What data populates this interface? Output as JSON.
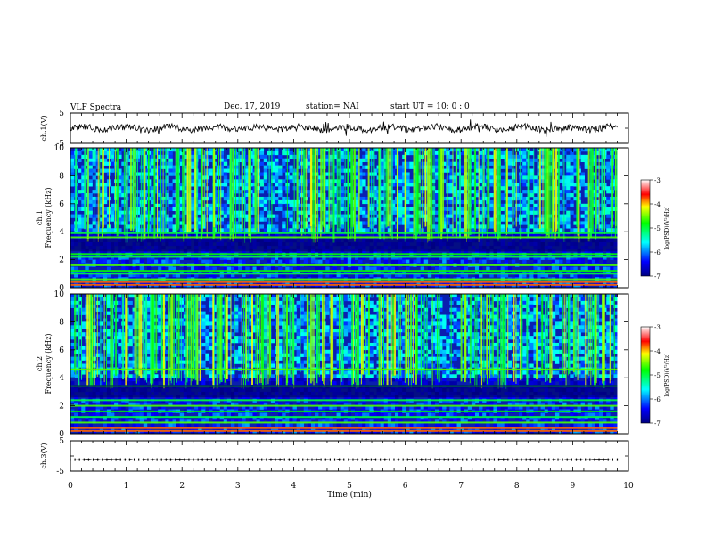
{
  "header": {
    "title": "VLF Spectra",
    "date": "Dec. 17, 2019",
    "station": "station= NAI",
    "start_ut": "start  UT =   10: 0  : 0"
  },
  "chart_data": [
    {
      "type": "line",
      "name": "ch1-waveform",
      "ylabel": "ch.1(V)",
      "ylim": [
        -5,
        5
      ],
      "yticks": [
        "5",
        "-5"
      ],
      "xlim": [
        0,
        10
      ],
      "note_level": 0
    },
    {
      "type": "heatmap",
      "name": "ch1-spectrogram",
      "ylabel": "ch.1\nFrequency (kHz)",
      "ylabel_lines": [
        "ch.1",
        "Frequency (kHz)"
      ],
      "ylim": [
        0,
        10
      ],
      "yticks": [
        "0",
        "2",
        "4",
        "6",
        "8",
        "10"
      ],
      "xlim": [
        0,
        10
      ],
      "data_end_min": 9.8,
      "colorbar": {
        "label": "log(PSD)(V²/Hz)",
        "range": [
          -7,
          -3
        ],
        "ticks": [
          "-3",
          "-4",
          "-5",
          "-6",
          "-7"
        ]
      },
      "persistent_lines_khz": [
        0.2,
        0.4,
        0.6,
        1.0,
        1.2,
        1.6,
        2.2,
        2.4,
        3.6,
        3.9
      ]
    },
    {
      "type": "heatmap",
      "name": "ch2-spectrogram",
      "ylabel": "ch.2\nFrequency (kHz)",
      "ylabel_lines": [
        "ch.2",
        "Frequency (kHz)"
      ],
      "ylim": [
        0,
        10
      ],
      "yticks": [
        "0",
        "2",
        "4",
        "6",
        "8",
        "10"
      ],
      "xlim": [
        0,
        10
      ],
      "data_end_min": 9.8,
      "colorbar": {
        "label": "log(PSD)(V²/Hz)",
        "range": [
          -7,
          -3
        ],
        "ticks": [
          "-3",
          "-4",
          "-5",
          "-6",
          "-7"
        ]
      },
      "persistent_lines_khz": [
        0.2,
        0.4,
        0.8,
        1.2,
        1.6,
        2.0,
        2.4,
        3.4,
        4.6
      ]
    },
    {
      "type": "line",
      "name": "ch3-waveform",
      "ylabel": "ch.3(V)",
      "ylim": [
        -5,
        5
      ],
      "yticks": [
        "5",
        "-5"
      ],
      "xlim": [
        0,
        10
      ],
      "note_level": -1.2
    }
  ],
  "xaxis": {
    "label": "Time (min)",
    "ticks": [
      "0",
      "1",
      "2",
      "3",
      "4",
      "5",
      "6",
      "7",
      "8",
      "9",
      "10"
    ]
  }
}
